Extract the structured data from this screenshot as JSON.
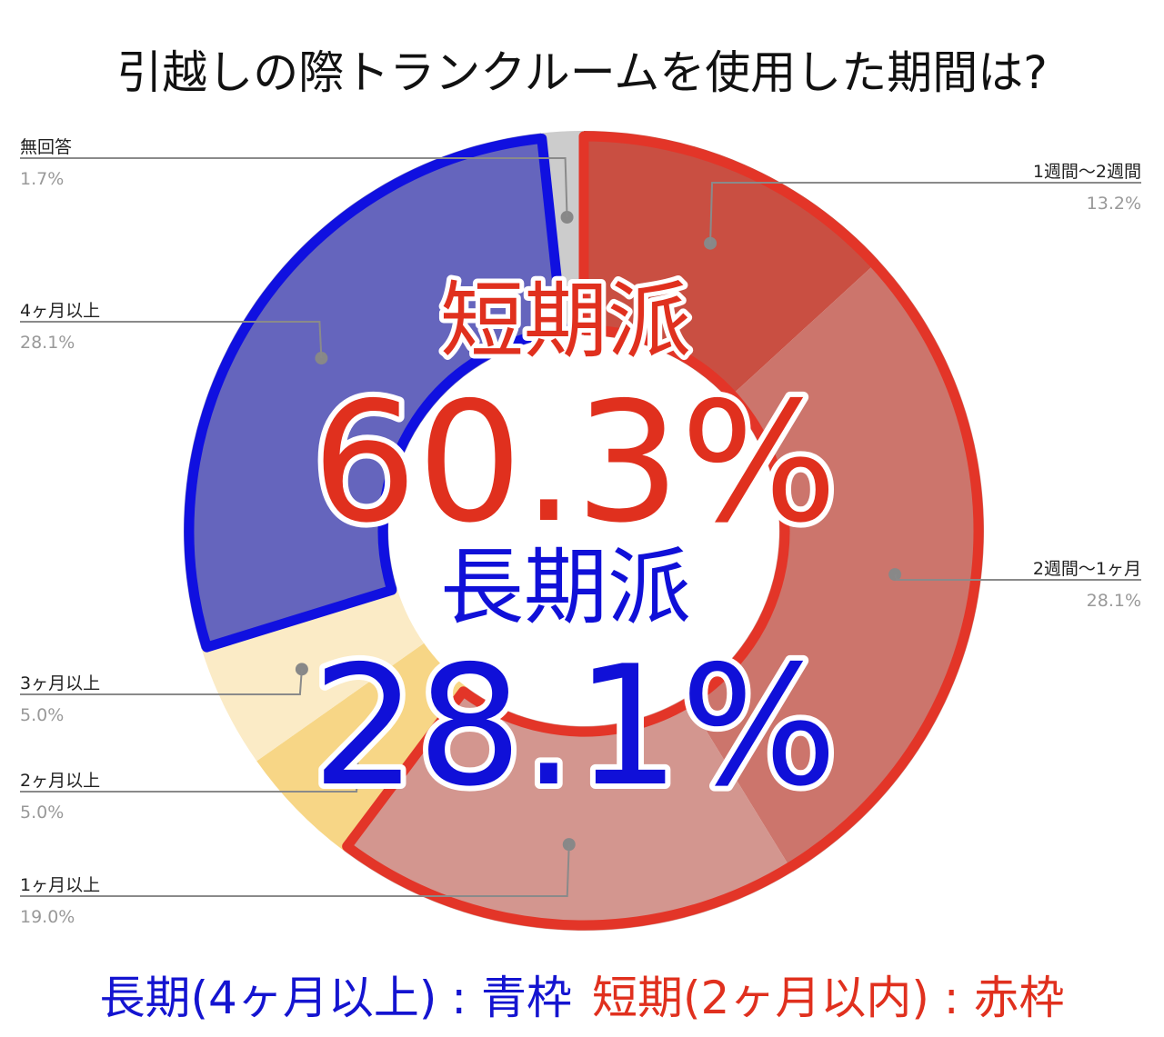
{
  "chart_data": {
    "type": "pie",
    "title": "引越しの際トランクルームを使用した期間は?",
    "slices": [
      {
        "label": "1週間〜2週間",
        "value": 13.2,
        "value_text": "13.2%",
        "color": "#c94f42"
      },
      {
        "label": "2週間〜1ヶ月",
        "value": 28.1,
        "value_text": "28.1%",
        "color": "#cc756c"
      },
      {
        "label": "1ヶ月以上",
        "value": 19.0,
        "value_text": "19.0%",
        "color": "#d3968f"
      },
      {
        "label": "2ヶ月以上",
        "value": 5.0,
        "value_text": "5.0%",
        "color": "#f7d686"
      },
      {
        "label": "3ヶ月以上",
        "value": 5.0,
        "value_text": "5.0%",
        "color": "#fbebc6"
      },
      {
        "label": "4ヶ月以上",
        "value": 28.1,
        "value_text": "28.1%",
        "color": "#6565bd"
      },
      {
        "label": "無回答",
        "value": 1.7,
        "value_text": "1.7%",
        "color": "#cccccc"
      }
    ],
    "annotations": {
      "short_term_label": "短期派",
      "short_term_value": "60.3%",
      "long_term_label": "長期派",
      "long_term_value": "28.1%"
    },
    "outline_colors": {
      "short": "#e33528",
      "long": "#1010e0"
    }
  },
  "footer": {
    "long_text": "長期(4ヶ月以上) : 青枠",
    "short_text": "短期(2ヶ月以内) : 赤枠"
  }
}
